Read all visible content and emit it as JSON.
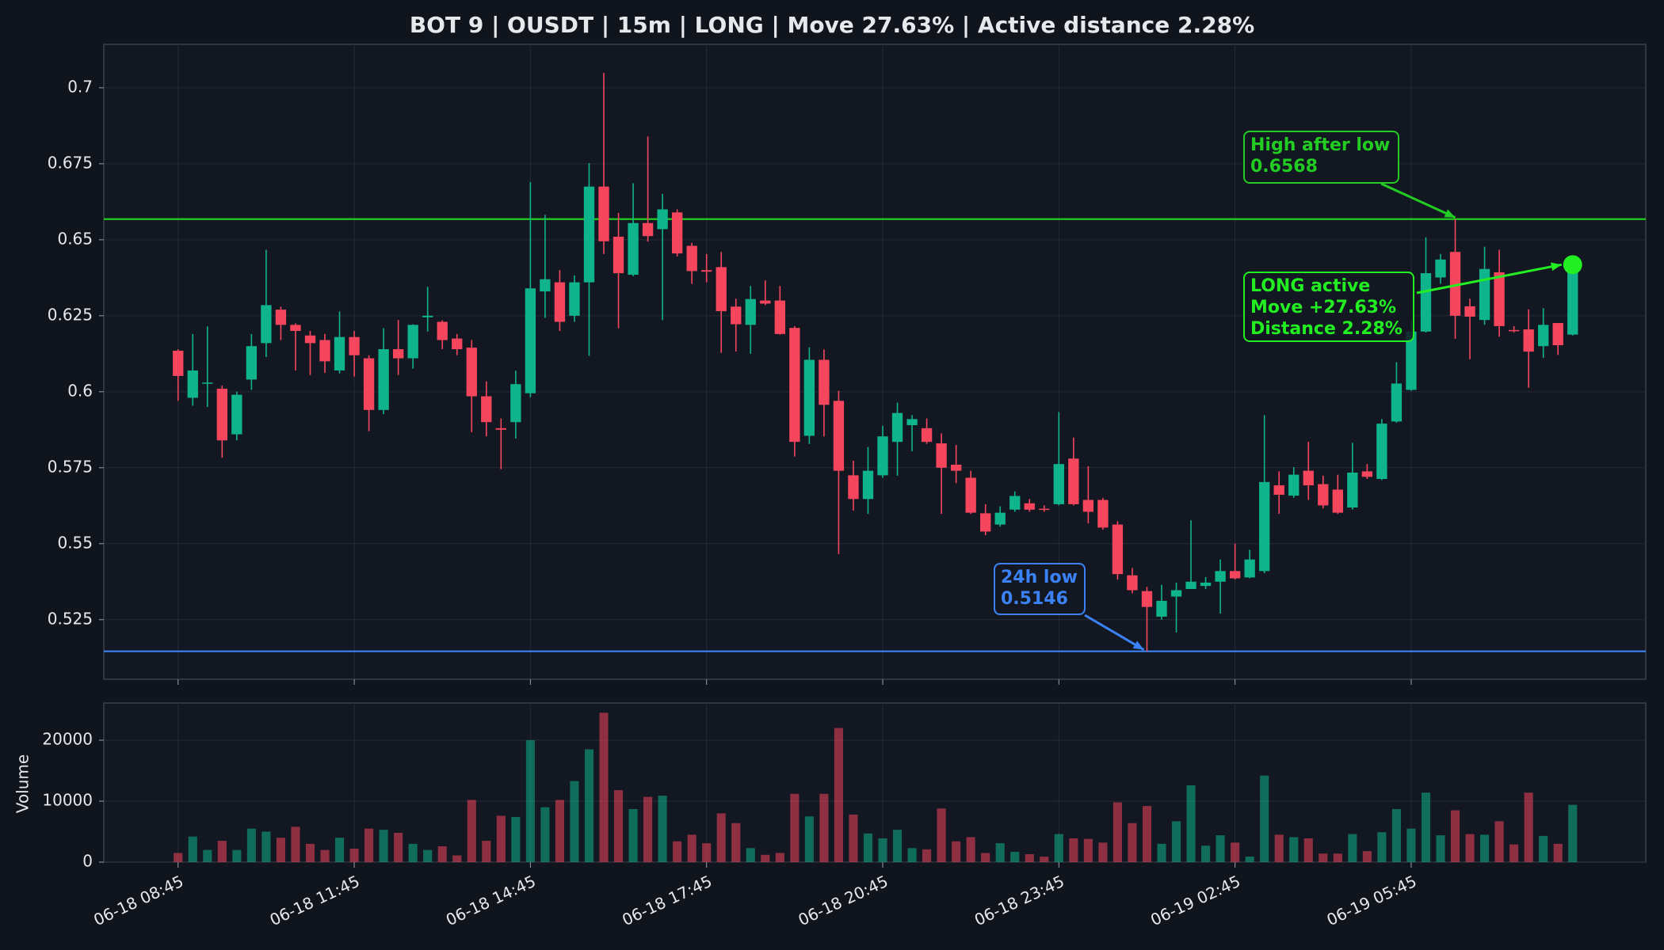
{
  "chart_data": {
    "type": "candlestick",
    "title": "BOT 9 | OUSDT | 15m | LONG | Move 27.63% | Active distance 2.28%",
    "categories": [
      "06-18 08:45",
      null,
      null,
      null,
      null,
      null,
      null,
      null,
      null,
      null,
      null,
      null,
      "06-18 11:45",
      null,
      null,
      null,
      null,
      null,
      null,
      null,
      null,
      null,
      null,
      null,
      "06-18 14:45",
      null,
      null,
      null,
      null,
      null,
      null,
      null,
      null,
      null,
      null,
      null,
      "06-18 17:45",
      null,
      null,
      null,
      null,
      null,
      null,
      null,
      null,
      null,
      null,
      null,
      "06-18 20:45",
      null,
      null,
      null,
      null,
      null,
      null,
      null,
      null,
      null,
      null,
      null,
      "06-18 23:45",
      null,
      null,
      null,
      null,
      null,
      null,
      null,
      null,
      null,
      null,
      null,
      "06-19 02:45",
      null,
      null,
      null,
      null,
      null,
      null,
      null,
      null,
      null,
      null,
      null,
      "06-19 05:45",
      null,
      null,
      null,
      null,
      null,
      null,
      null,
      null,
      null,
      null,
      null
    ],
    "open": [
      0.6135,
      0.598,
      0.603,
      0.601,
      0.586,
      0.604,
      0.616,
      0.627,
      0.622,
      0.6185,
      0.617,
      0.607,
      0.618,
      0.611,
      0.594,
      0.614,
      0.611,
      0.6245,
      0.623,
      0.6175,
      0.6145,
      0.5985,
      0.588,
      0.59,
      0.5995,
      0.633,
      0.636,
      0.625,
      0.636,
      0.6675,
      0.651,
      0.6385,
      0.6555,
      0.6535,
      0.659,
      0.648,
      0.64,
      0.641,
      0.628,
      0.622,
      0.63,
      0.63,
      0.621,
      0.5855,
      0.6105,
      0.597,
      0.5725,
      0.5647,
      0.5725,
      0.5835,
      0.589,
      0.588,
      0.583,
      0.576,
      0.5717,
      0.56,
      0.5563,
      0.5612,
      0.5633,
      0.5615,
      0.563,
      0.578,
      0.5644,
      0.5644,
      0.5563,
      0.5396,
      0.5344,
      0.526,
      0.5326,
      0.5351,
      0.5361,
      0.5375,
      0.541,
      0.5389,
      0.541,
      0.5692,
      0.5658,
      0.574,
      0.5696,
      0.5678,
      0.5619,
      0.5738,
      0.5713,
      0.5902,
      0.6006,
      0.6198,
      0.6376,
      0.646,
      0.6281,
      0.6236,
      0.6393,
      0.6203,
      0.6205,
      0.615,
      0.6226,
      0.6188
    ],
    "high": [
      0.614,
      0.619,
      0.6215,
      0.602,
      0.6,
      0.619,
      0.6467,
      0.628,
      0.6225,
      0.62,
      0.619,
      0.6264,
      0.62,
      0.612,
      0.6209,
      0.6236,
      0.6222,
      0.6345,
      0.6235,
      0.619,
      0.617,
      0.6034,
      0.5912,
      0.6069,
      0.669,
      0.6582,
      0.64,
      0.6383,
      0.6752,
      0.7049,
      0.6589,
      0.6686,
      0.684,
      0.6651,
      0.66,
      0.649,
      0.6453,
      0.646,
      0.6306,
      0.6348,
      0.6366,
      0.6348,
      0.6216,
      0.6146,
      0.6139,
      0.6003,
      0.5773,
      0.5818,
      0.5888,
      0.5964,
      0.5923,
      0.5912,
      0.5863,
      0.5825,
      0.574,
      0.563,
      0.5623,
      0.5672,
      0.5647,
      0.5626,
      0.5933,
      0.5849,
      0.5755,
      0.5651,
      0.5574,
      0.542,
      0.5358,
      0.5365,
      0.5372,
      0.5577,
      0.539,
      0.5448,
      0.55,
      0.548,
      0.5923,
      0.5738,
      0.5752,
      0.5835,
      0.5724,
      0.5727,
      0.5832,
      0.5762,
      0.591,
      0.6097,
      0.6233,
      0.6508,
      0.6453,
      0.6568,
      0.6306,
      0.6477,
      0.6467,
      0.6216,
      0.6271,
      0.6275,
      0.6226,
      0.6418
    ],
    "low": [
      0.597,
      0.5954,
      0.595,
      0.5783,
      0.584,
      0.6006,
      0.6114,
      0.617,
      0.607,
      0.6055,
      0.6062,
      0.606,
      0.605,
      0.587,
      0.5926,
      0.6055,
      0.6076,
      0.6198,
      0.614,
      0.612,
      0.5867,
      0.5853,
      0.5745,
      0.5846,
      0.5982,
      0.6243,
      0.62,
      0.623,
      0.6118,
      0.6453,
      0.6209,
      0.638,
      0.6494,
      0.6236,
      0.6445,
      0.6355,
      0.636,
      0.6128,
      0.6132,
      0.6125,
      0.6285,
      0.6188,
      0.5787,
      0.5828,
      0.5853,
      0.5466,
      0.5609,
      0.5598,
      0.5717,
      0.5724,
      0.5804,
      0.5828,
      0.5598,
      0.5699,
      0.5598,
      0.5528,
      0.5556,
      0.5605,
      0.5605,
      0.5605,
      0.5626,
      0.5626,
      0.5567,
      0.5546,
      0.5382,
      0.5337,
      0.5146,
      0.525,
      0.5208,
      0.5351,
      0.5351,
      0.527,
      0.5382,
      0.5386,
      0.5403,
      0.5598,
      0.5651,
      0.5644,
      0.5616,
      0.5598,
      0.5612,
      0.5713,
      0.5709,
      0.5898,
      0.6003,
      0.6195,
      0.6355,
      0.6174,
      0.6107,
      0.622,
      0.6181,
      0.6195,
      0.6013,
      0.6111,
      0.6121,
      0.6185
    ],
    "close": [
      0.6052,
      0.607,
      0.603,
      0.584,
      0.599,
      0.615,
      0.6285,
      0.622,
      0.62,
      0.616,
      0.61,
      0.618,
      0.612,
      0.594,
      0.614,
      0.611,
      0.622,
      0.625,
      0.617,
      0.614,
      0.5985,
      0.59,
      0.5875,
      0.6025,
      0.634,
      0.637,
      0.623,
      0.636,
      0.6675,
      0.6495,
      0.639,
      0.6555,
      0.6512,
      0.66,
      0.6455,
      0.6397,
      0.6395,
      0.6265,
      0.6222,
      0.6305,
      0.629,
      0.619,
      0.5835,
      0.6105,
      0.5957,
      0.574,
      0.5647,
      0.574,
      0.5853,
      0.593,
      0.591,
      0.5835,
      0.575,
      0.574,
      0.5602,
      0.554,
      0.5602,
      0.5657,
      0.5612,
      0.5612,
      0.5762,
      0.563,
      0.5605,
      0.5553,
      0.54,
      0.5347,
      0.5292,
      0.5312,
      0.5347,
      0.5375,
      0.5372,
      0.541,
      0.5386,
      0.5448,
      0.5703,
      0.5661,
      0.5727,
      0.5692,
      0.5626,
      0.5602,
      0.5734,
      0.572,
      0.5895,
      0.6027,
      0.6198,
      0.639,
      0.6435,
      0.625,
      0.6247,
      0.6404,
      0.6216,
      0.6201,
      0.6132,
      0.622,
      0.6153,
      0.6418
    ],
    "volume": [
      1500,
      4200,
      2000,
      3500,
      2000,
      5500,
      5000,
      4000,
      5800,
      3000,
      2000,
      4000,
      2200,
      5500,
      5300,
      4800,
      3000,
      2000,
      2600,
      1100,
      10200,
      3500,
      7600,
      7400,
      20000,
      9000,
      10200,
      13300,
      18500,
      24500,
      11800,
      8700,
      10700,
      10900,
      3400,
      4500,
      3100,
      8000,
      6400,
      2300,
      1200,
      1500,
      11200,
      7500,
      11200,
      22000,
      7800,
      4700,
      3900,
      5300,
      2300,
      2100,
      8800,
      3400,
      4100,
      1500,
      3100,
      1700,
      1300,
      900,
      4600,
      3900,
      3800,
      3200,
      9800,
      6400,
      9200,
      3000,
      6700,
      12600,
      2700,
      4400,
      3200,
      900,
      14200,
      4500,
      4100,
      3900,
      1400,
      1400,
      4600,
      1800,
      4900,
      8700,
      5500,
      11400,
      4400,
      8500,
      4600,
      4500,
      6700,
      2900,
      11400,
      4300,
      3000,
      9400
    ],
    "up_color": "#0fb48c",
    "down_color": "#f6465d",
    "ylim": [
      0.5054,
      0.7143
    ],
    "yticks": [
      0.525,
      0.55,
      0.575,
      0.6,
      0.625,
      0.65,
      0.675,
      0.7
    ],
    "volume_label": "Volume",
    "volume_ylim": [
      0,
      26100
    ],
    "volume_yticks": [
      0,
      10000,
      20000
    ],
    "grid": true,
    "high_line": {
      "label": "High after low",
      "value": 0.6568,
      "color": "#22cc22"
    },
    "low_line": {
      "label": "24h low",
      "value": 0.5146,
      "color": "#3b82f6"
    },
    "active": {
      "lines": [
        "LONG active",
        "Move +27.63%",
        "Distance 2.28%"
      ],
      "color": "#22ee22"
    }
  }
}
